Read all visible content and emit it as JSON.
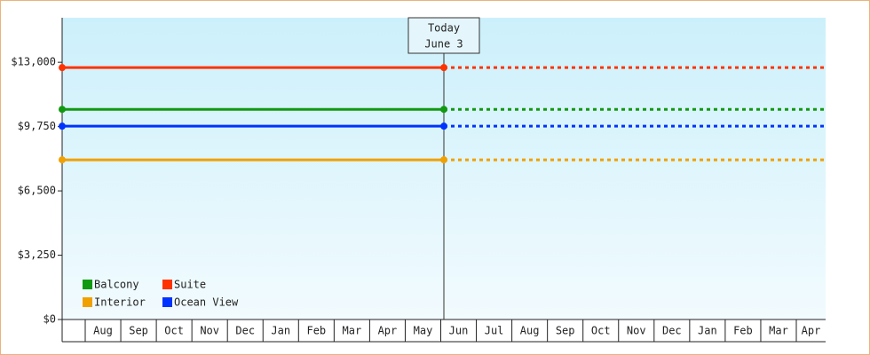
{
  "chart_data": {
    "type": "line",
    "annotation": [
      "Today",
      "June 3"
    ],
    "categories": [
      null,
      "Aug",
      "Sep",
      "Oct",
      "Nov",
      "Dec",
      "Jan",
      "Feb",
      "Mar",
      "Apr",
      "May",
      "Jun",
      "Jul",
      "Aug",
      "Sep",
      "Oct",
      "Nov",
      "Dec",
      "Jan",
      "Feb",
      "Mar",
      "Apr"
    ],
    "ylim": [
      0,
      15250
    ],
    "yticks": [
      {
        "value": 0,
        "label": "$0"
      },
      {
        "value": 3250,
        "label": "$3,250"
      },
      {
        "value": 6500,
        "label": "$6,500"
      },
      {
        "value": 9750,
        "label": "$9,750"
      },
      {
        "value": 13000,
        "label": "$13,000"
      }
    ],
    "series": [
      {
        "name": "Balcony",
        "color": "#119911",
        "value": 10620
      },
      {
        "name": "Suite",
        "color": "#ff3300",
        "value": 12730
      },
      {
        "name": "Interior",
        "color": "#f0a000",
        "value": 8070
      },
      {
        "name": "Ocean View",
        "color": "#0033ff",
        "value": 9770
      }
    ]
  }
}
